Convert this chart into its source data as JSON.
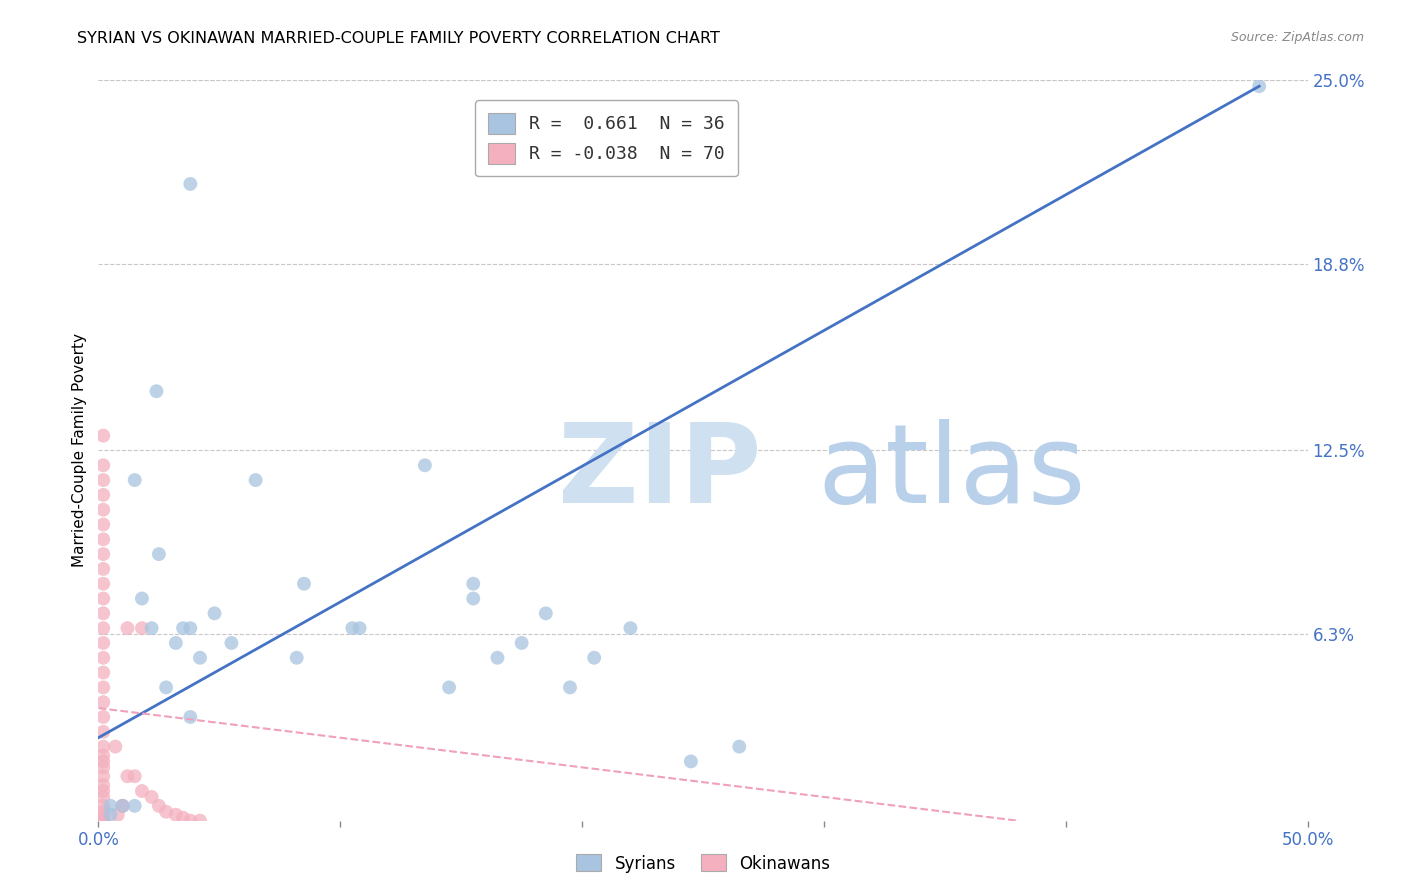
{
  "title": "SYRIAN VS OKINAWAN MARRIED-COUPLE FAMILY POVERTY CORRELATION CHART",
  "source": "Source: ZipAtlas.com",
  "ylabel": "Married-Couple Family Poverty",
  "xlim": [
    0.0,
    0.5
  ],
  "ylim": [
    0.0,
    0.25
  ],
  "ytick_labels_right": [
    "25.0%",
    "18.8%",
    "12.5%",
    "6.3%"
  ],
  "ytick_values_right": [
    0.25,
    0.188,
    0.125,
    0.063
  ],
  "background_color": "#ffffff",
  "grid_color": "#c8c8c8",
  "syrians_color": "#a8c4e0",
  "okinawans_color": "#f4b0be",
  "syrians_line_color": "#4472c4",
  "okinawans_line_color": "#f0a0b8",
  "legend_r_syrian": " 0.661",
  "legend_n_syrian": "36",
  "legend_r_okinawan": "-0.038",
  "legend_n_okinawan": "70",
  "syrians_x": [
    0.005,
    0.005,
    0.01,
    0.015,
    0.018,
    0.022,
    0.025,
    0.028,
    0.032,
    0.035,
    0.038,
    0.042,
    0.048,
    0.055,
    0.065,
    0.082,
    0.085,
    0.105,
    0.108,
    0.135,
    0.145,
    0.155,
    0.155,
    0.165,
    0.175,
    0.185,
    0.195,
    0.205,
    0.22,
    0.245,
    0.265,
    0.015,
    0.038,
    0.038,
    0.48,
    0.024
  ],
  "syrians_y": [
    0.005,
    0.002,
    0.005,
    0.005,
    0.075,
    0.065,
    0.09,
    0.045,
    0.06,
    0.065,
    0.065,
    0.055,
    0.07,
    0.06,
    0.115,
    0.055,
    0.08,
    0.065,
    0.065,
    0.12,
    0.045,
    0.08,
    0.075,
    0.055,
    0.06,
    0.07,
    0.045,
    0.055,
    0.065,
    0.02,
    0.025,
    0.115,
    0.215,
    0.035,
    0.248,
    0.145
  ],
  "okinawans_x": [
    0.002,
    0.002,
    0.002,
    0.002,
    0.002,
    0.002,
    0.002,
    0.002,
    0.002,
    0.002,
    0.002,
    0.002,
    0.002,
    0.002,
    0.002,
    0.002,
    0.002,
    0.002,
    0.002,
    0.002,
    0.002,
    0.002,
    0.002,
    0.002,
    0.002,
    0.002,
    0.002,
    0.002,
    0.002,
    0.002,
    0.002,
    0.002,
    0.002,
    0.002,
    0.002,
    0.002,
    0.002,
    0.002,
    0.002,
    0.002,
    0.002,
    0.002,
    0.002,
    0.002,
    0.002,
    0.002,
    0.002,
    0.002,
    0.002,
    0.002,
    0.007,
    0.012,
    0.012,
    0.018,
    0.018,
    0.022,
    0.025,
    0.028,
    0.032,
    0.035,
    0.038,
    0.042,
    0.008,
    0.01,
    0.01,
    0.015,
    0.002,
    0.002,
    0.002,
    0.002
  ],
  "okinawans_y": [
    0.13,
    0.12,
    0.115,
    0.11,
    0.105,
    0.1,
    0.095,
    0.09,
    0.085,
    0.08,
    0.075,
    0.07,
    0.065,
    0.06,
    0.055,
    0.05,
    0.045,
    0.04,
    0.035,
    0.03,
    0.025,
    0.022,
    0.02,
    0.018,
    0.015,
    0.012,
    0.01,
    0.008,
    0.005,
    0.003,
    0.002,
    0.001,
    0.0,
    0.0,
    0.0,
    0.0,
    0.0,
    0.0,
    0.0,
    0.0,
    0.0,
    0.0,
    0.0,
    0.0,
    0.0,
    0.0,
    0.0,
    0.0,
    0.0,
    0.0,
    0.025,
    0.015,
    0.065,
    0.01,
    0.065,
    0.008,
    0.005,
    0.003,
    0.002,
    0.001,
    0.0,
    0.0,
    0.002,
    0.005,
    0.005,
    0.015,
    0.0,
    0.0,
    0.0,
    0.0
  ],
  "syrian_line_x": [
    0.0,
    0.48
  ],
  "syrian_line_y": [
    0.028,
    0.248
  ],
  "okinawan_line_x": [
    0.0,
    0.38
  ],
  "okinawan_line_y": [
    0.038,
    0.0
  ]
}
